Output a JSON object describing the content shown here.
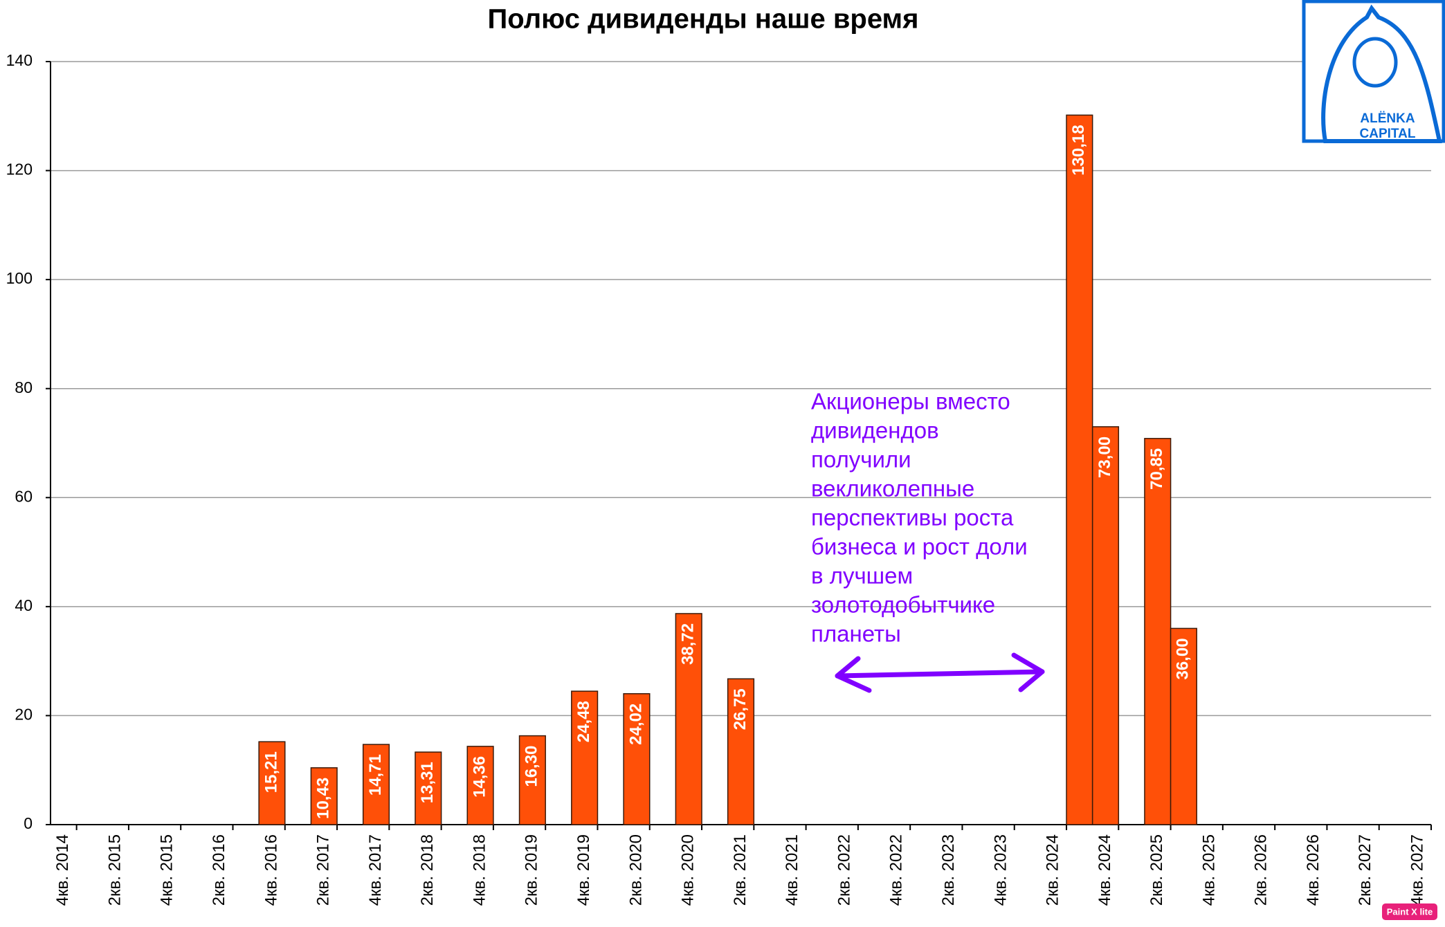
{
  "chart_data": {
    "type": "bar",
    "title": "Полюс дивиденды наше время",
    "categories": [
      "4кв. 2014",
      null,
      "2кв. 2015",
      null,
      "4кв. 2015",
      null,
      "2кв. 2016",
      null,
      "4кв. 2016",
      null,
      "2кв. 2017",
      null,
      "4кв. 2017",
      null,
      "2кв. 2018",
      null,
      "4кв. 2018",
      null,
      "2кв. 2019",
      null,
      "4кв. 2019",
      null,
      "2кв. 2020",
      null,
      "4кв. 2020",
      null,
      "2кв. 2021",
      null,
      "4кв. 2021",
      null,
      "2кв. 2022",
      null,
      "4кв. 2022",
      null,
      "2кв. 2023",
      null,
      "4кв. 2023",
      null,
      "2кв. 2024",
      null,
      "4кв. 2024",
      null,
      "2кв. 2025",
      null,
      "4кв. 2025",
      null,
      "2кв. 2026",
      null,
      "4кв. 2026",
      null,
      "2кв. 2027",
      null,
      "4кв. 2027"
    ],
    "values": [
      null,
      null,
      null,
      null,
      null,
      null,
      null,
      null,
      15.21,
      null,
      10.43,
      null,
      14.71,
      null,
      13.31,
      null,
      14.36,
      null,
      16.3,
      null,
      24.48,
      null,
      24.02,
      null,
      38.72,
      null,
      26.75,
      null,
      null,
      null,
      null,
      null,
      null,
      null,
      null,
      null,
      null,
      null,
      null,
      130.18,
      73,
      null,
      70.85,
      36,
      null,
      null,
      null,
      null,
      null,
      null,
      null,
      null,
      null
    ],
    "value_labels": [
      null,
      null,
      null,
      null,
      null,
      null,
      null,
      null,
      "15,21",
      null,
      "10,43",
      null,
      "14,71",
      null,
      "13,31",
      null,
      "14,36",
      null,
      "16,30",
      null,
      "24,48",
      null,
      "24,02",
      null,
      "38,72",
      null,
      "26,75",
      null,
      null,
      null,
      null,
      null,
      null,
      null,
      null,
      null,
      null,
      null,
      null,
      "130,18",
      "73,00",
      null,
      "70,85",
      "36,00",
      null,
      null,
      null,
      null,
      null,
      null,
      null,
      null,
      null
    ],
    "color": "#ff5008",
    "ylim": [
      0,
      140
    ],
    "yticks": [
      0,
      20,
      40,
      60,
      80,
      100,
      120,
      140
    ],
    "grid": true,
    "annotation": [
      "Акционеры вместо",
      "дивидендов",
      "получили",
      "векликолепные",
      "перспективы роста",
      "бизнеса и рост доли",
      "в лучшем",
      "золотодобытчике",
      "планеты"
    ],
    "annotation_color": "#8000ff",
    "logo": [
      "ALЁNKA",
      "CAPITAL"
    ],
    "badge": "Paint X lite"
  }
}
